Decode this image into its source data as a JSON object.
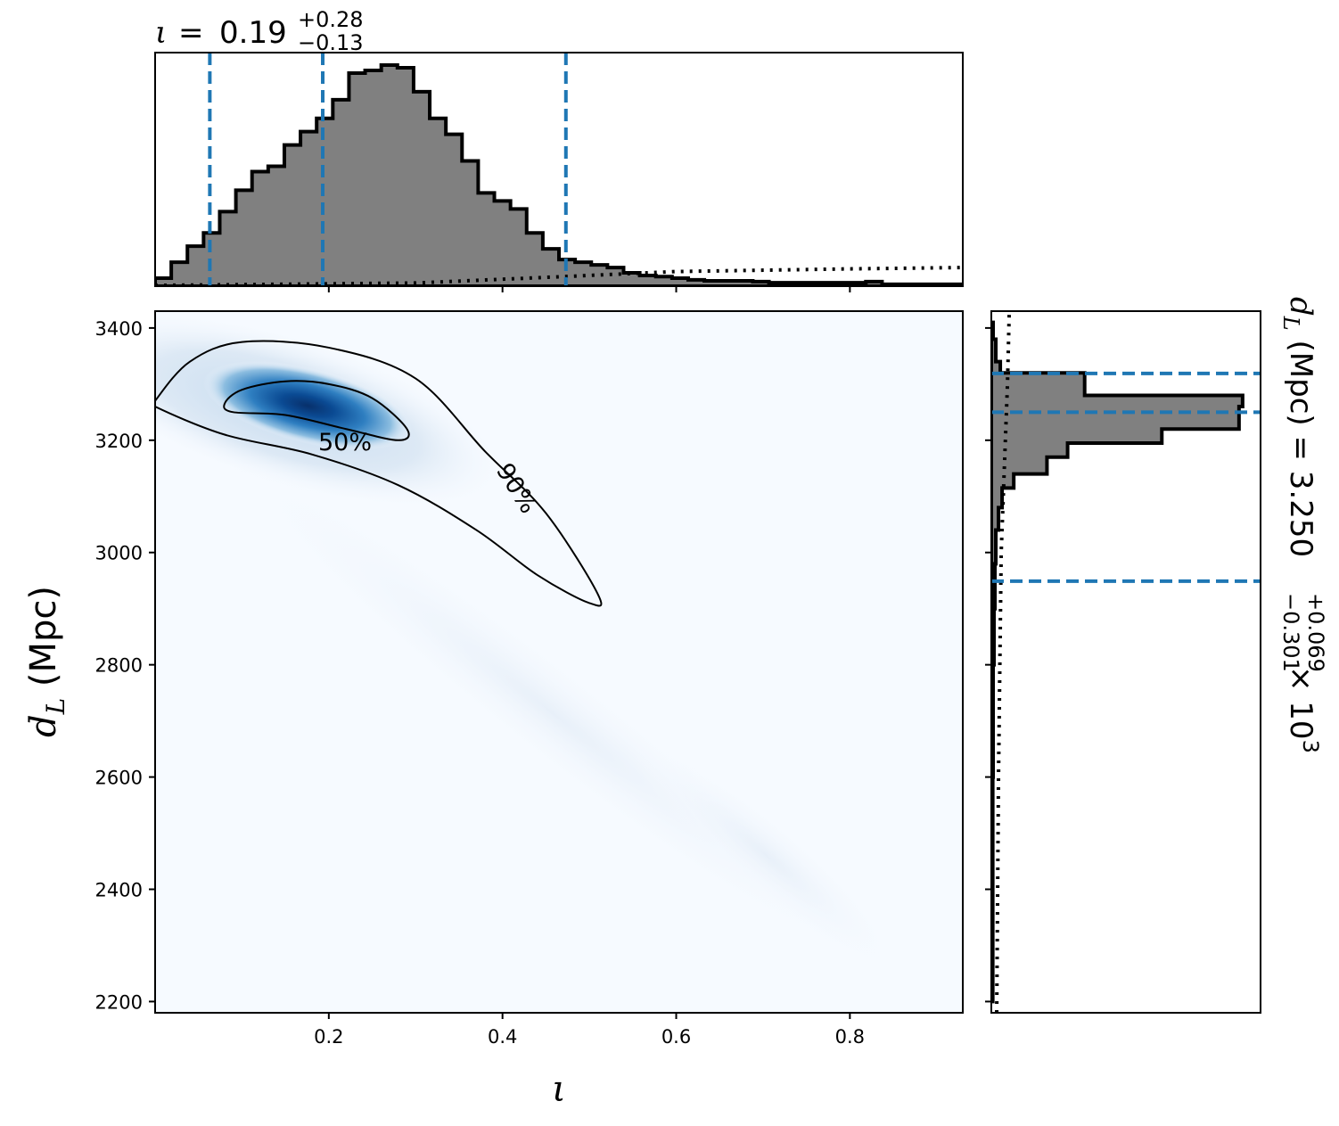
{
  "chart_data": {
    "type": "corner",
    "panels": [
      {
        "id": "top-marginal",
        "type": "histogram",
        "variable": "iota",
        "title_value": "0.19",
        "title_plus": "+0.28",
        "title_minus": "−0.13",
        "quantile_lines": [
          0.063,
          0.193,
          0.473
        ],
        "bin_width": 0.0186,
        "x_start": 0.0,
        "heights": [
          3,
          9,
          15,
          20,
          28,
          36,
          43,
          45,
          53,
          58,
          63,
          70,
          80,
          81,
          83,
          82,
          73,
          63,
          57,
          47,
          35,
          32,
          29,
          20,
          14,
          10,
          9,
          8,
          7,
          5,
          4,
          3.6,
          3,
          2.4,
          2,
          2,
          2,
          1.7,
          1.3,
          1.3,
          1.3,
          1.3,
          1.3,
          1.3,
          1.7,
          0.7,
          0.7,
          0.7,
          0.7,
          0.7,
          0.7,
          0.7,
          0.7,
          0.7,
          0.7,
          0.7,
          0.7,
          0.7,
          0.7,
          0.7,
          0.7,
          0.7,
          0.7,
          0.7,
          0.7,
          0.7,
          0.7,
          0.7,
          0.7,
          0.7,
          0.7,
          0.7,
          0.7,
          0.7,
          0.7,
          0.7,
          0.7,
          0.7,
          0.7,
          0.7,
          0.7,
          0.7,
          0.7,
          0.7,
          0.7,
          0.7,
          0.7,
          0.7,
          0.7
        ],
        "prior_curve": [
          [
            0.0,
            0.3
          ],
          [
            0.3,
            1.2
          ],
          [
            0.47,
            3.6
          ],
          [
            0.6,
            5.5
          ],
          [
            0.8,
            6.5
          ],
          [
            0.93,
            7
          ]
        ]
      },
      {
        "id": "joint-density",
        "type": "heatmap",
        "xlabel": "ι",
        "ylabel": "d_L (Mpc)",
        "xlim": [
          0.0,
          0.93
        ],
        "ylim": [
          2180,
          3430
        ],
        "xticks": [
          "0.2",
          "0.4",
          "0.6",
          "0.8"
        ],
        "yticks": [
          "2200",
          "2400",
          "2600",
          "2800",
          "3000",
          "3200",
          "3400"
        ],
        "contours": [
          {
            "label": "50%",
            "points": [
              [
                0.08,
                3265
              ],
              [
                0.1,
                3290
              ],
              [
                0.15,
                3305
              ],
              [
                0.2,
                3300
              ],
              [
                0.25,
                3275
              ],
              [
                0.29,
                3220
              ],
              [
                0.28,
                3200
              ],
              [
                0.22,
                3220
              ],
              [
                0.15,
                3245
              ],
              [
                0.09,
                3250
              ]
            ]
          },
          {
            "label": "90%",
            "points": [
              [
                0.0,
                3270
              ],
              [
                0.04,
                3340
              ],
              [
                0.1,
                3375
              ],
              [
                0.2,
                3365
              ],
              [
                0.3,
                3310
              ],
              [
                0.38,
                3180
              ],
              [
                0.45,
                3070
              ],
              [
                0.51,
                2925
              ],
              [
                0.5,
                2910
              ],
              [
                0.44,
                2960
              ],
              [
                0.37,
                3040
              ],
              [
                0.28,
                3120
              ],
              [
                0.18,
                3175
              ],
              [
                0.08,
                3210
              ],
              [
                0.0,
                3260
              ]
            ]
          }
        ],
        "density_peak": [
          0.2,
          3262
        ]
      },
      {
        "id": "right-marginal",
        "type": "histogram",
        "variable": "d_L (Mpc)",
        "title_value": "3.250",
        "title_plus": "+0.069",
        "title_minus": "−0.301",
        "title_suffix": "× 10",
        "title_exp": "3",
        "quantile_lines": [
          2949,
          3250,
          3319
        ],
        "bins": [
          [
            3380,
            3410,
            2
          ],
          [
            3340,
            3380,
            5
          ],
          [
            3320,
            3340,
            10
          ],
          [
            3280,
            3320,
            104
          ],
          [
            3260,
            3280,
            280
          ],
          [
            3220,
            3260,
            276
          ],
          [
            3195,
            3220,
            190
          ],
          [
            3170,
            3195,
            85
          ],
          [
            3140,
            3170,
            62
          ],
          [
            3115,
            3140,
            25
          ],
          [
            3080,
            3115,
            12
          ],
          [
            3040,
            3080,
            8
          ],
          [
            2980,
            3040,
            5
          ],
          [
            2900,
            2980,
            4
          ],
          [
            2800,
            2900,
            3
          ],
          [
            2600,
            2800,
            2
          ],
          [
            2200,
            2600,
            1.6
          ]
        ],
        "prior_curve": [
          [
            2180,
            6
          ],
          [
            2600,
            8
          ],
          [
            3000,
            11
          ],
          [
            3300,
            18
          ],
          [
            3430,
            20
          ]
        ],
        "xmax": 300
      }
    ]
  }
}
